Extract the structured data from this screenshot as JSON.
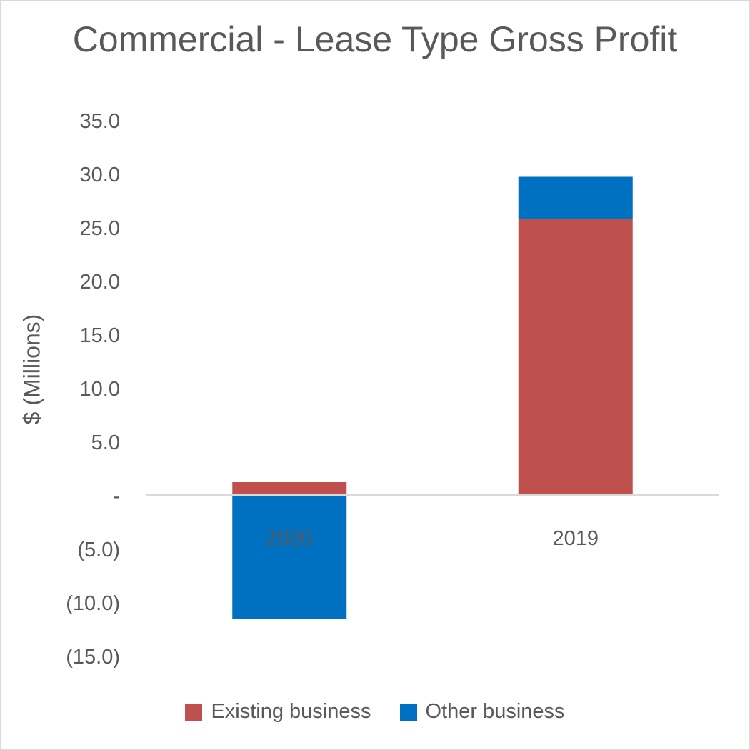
{
  "chart_data": {
    "type": "bar",
    "stacked": true,
    "title": "Commercial - Lease Type Gross Profit",
    "ylabel": "$ (Millions)",
    "xlabel": "",
    "categories": [
      "2020",
      "2019"
    ],
    "series": [
      {
        "name": "Existing business",
        "color": "#c0504d",
        "values": [
          1.2,
          25.8
        ]
      },
      {
        "name": "Other business",
        "color": "#0070c0",
        "values": [
          -11.6,
          3.9
        ]
      }
    ],
    "ylim": [
      -15,
      35
    ],
    "yticks": [
      {
        "value": 35,
        "label": "35.0"
      },
      {
        "value": 30,
        "label": "30.0"
      },
      {
        "value": 25,
        "label": "25.0"
      },
      {
        "value": 20,
        "label": "20.0"
      },
      {
        "value": 15,
        "label": "15.0"
      },
      {
        "value": 10,
        "label": "10.0"
      },
      {
        "value": 5,
        "label": "5.0"
      },
      {
        "value": 0,
        "label": "-"
      },
      {
        "value": -5,
        "label": "(5.0)"
      },
      {
        "value": -10,
        "label": "(10.0)"
      },
      {
        "value": -15,
        "label": "(15.0)"
      }
    ],
    "grid": false,
    "legend_position": "bottom",
    "axis_color": "#d9d9d9"
  }
}
